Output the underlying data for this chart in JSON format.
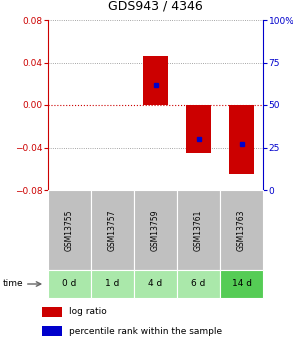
{
  "title": "GDS943 / 4346",
  "columns": [
    "GSM13755",
    "GSM13757",
    "GSM13759",
    "GSM13761",
    "GSM13763"
  ],
  "time_labels": [
    "0 d",
    "1 d",
    "4 d",
    "6 d",
    "14 d"
  ],
  "log_ratios": [
    0.0,
    0.0,
    0.046,
    -0.045,
    -0.065
  ],
  "percentile_ranks": [
    null,
    null,
    0.62,
    0.3,
    0.27
  ],
  "ylim_left": [
    -0.08,
    0.08
  ],
  "ylim_right": [
    0,
    1
  ],
  "bar_color": "#cc0000",
  "dot_color": "#0000cc",
  "zero_line_color": "#cc0000",
  "grid_color": "#888888",
  "header_bg": "#c0c0c0",
  "time_colors": [
    "#aae8aa",
    "#aae8aa",
    "#aae8aa",
    "#aae8aa",
    "#55cc55"
  ],
  "left_axis_color": "#cc0000",
  "right_axis_color": "#0000cc",
  "yticks_left": [
    -0.08,
    -0.04,
    0.0,
    0.04,
    0.08
  ],
  "yticks_right": [
    0.0,
    0.25,
    0.5,
    0.75,
    1.0
  ],
  "ytick_labels_right": [
    "0",
    "25",
    "50",
    "75",
    "100%"
  ]
}
